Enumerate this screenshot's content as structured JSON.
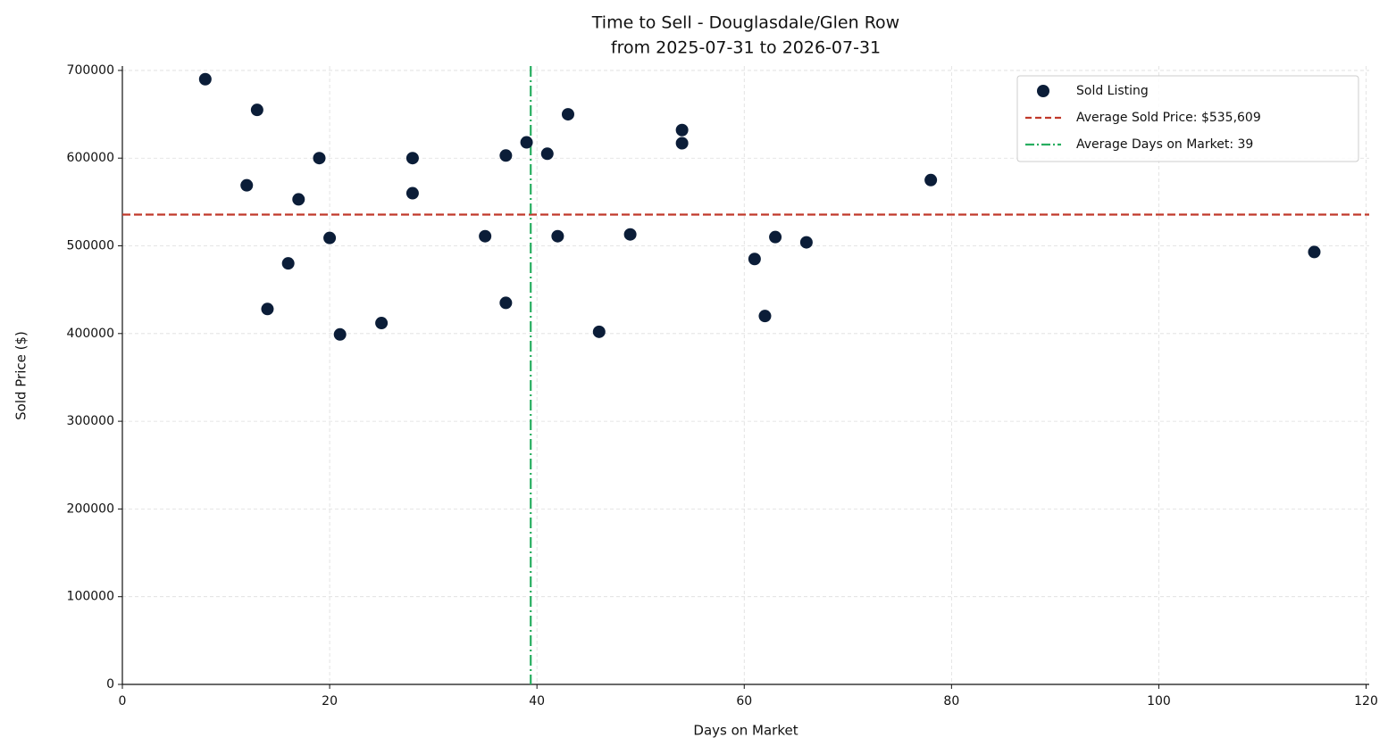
{
  "chart_data": {
    "type": "scatter",
    "title": "Time to Sell - Douglasdale/Glen Row",
    "subtitle": "from 2025-07-31 to 2026-07-31",
    "xlabel": "Days on Market",
    "ylabel": "Sold Price ($)",
    "x": [
      8,
      13,
      12,
      19,
      17,
      20,
      16,
      14,
      21,
      25,
      28,
      28,
      35,
      37,
      37,
      39,
      41,
      43,
      42,
      46,
      49,
      54,
      54,
      61,
      62,
      63,
      66,
      78,
      115
    ],
    "series": [
      {
        "name": "Sold Listing",
        "color": "#0b1d38",
        "values": [
          690000,
          655000,
          569000,
          600000,
          553000,
          509000,
          480000,
          428000,
          399000,
          412000,
          600000,
          560000,
          511000,
          603000,
          435000,
          618000,
          605000,
          650000,
          511000,
          402000,
          513000,
          632000,
          617000,
          485000,
          420000,
          510000,
          504000,
          575000,
          493000
        ]
      }
    ],
    "reference_lines": [
      {
        "name": "Average Sold Price: $535,609",
        "value": 535609,
        "orientation": "horizontal",
        "color": "#c0392b",
        "style": "dashed"
      },
      {
        "name": "Average Days on Market: 39",
        "value": 39.4,
        "orientation": "vertical",
        "color": "#27ae60",
        "style": "dashdot"
      }
    ],
    "xlim": [
      0,
      120.3
    ],
    "xticks": [
      0,
      20,
      40,
      60,
      80,
      100,
      120
    ],
    "ylim": [
      0,
      705000
    ],
    "yticks": [
      0,
      100000,
      200000,
      300000,
      400000,
      500000,
      600000,
      700000
    ],
    "grid": true,
    "legend": "upper right"
  }
}
